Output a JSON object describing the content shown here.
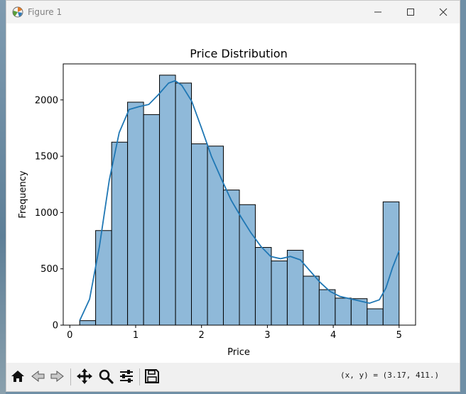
{
  "window": {
    "title": "Figure 1",
    "controls": [
      "minimize-icon",
      "maximize-icon",
      "close-icon"
    ]
  },
  "toolbar": {
    "buttons": [
      "home-icon",
      "back-icon",
      "forward-icon",
      "pan-icon",
      "zoom-icon",
      "configure-subplots-icon",
      "save-icon"
    ],
    "coords_text": "(x, y) = (3.17, 411.)"
  },
  "colors": {
    "bar_fill": "#8fb9d9",
    "bar_edge": "#000000",
    "kde_line": "#1f77b4"
  },
  "chart_data": {
    "type": "bar",
    "title": "Price Distribution",
    "xlabel": "Price",
    "ylabel": "Frequency",
    "xlim": [
      -0.1,
      5.25
    ],
    "ylim": [
      0,
      2320
    ],
    "xticks": [
      0,
      1,
      2,
      3,
      4,
      5
    ],
    "yticks": [
      0,
      500,
      1000,
      1500,
      2000
    ],
    "bin_edges": [
      0.15,
      0.392,
      0.635,
      0.877,
      1.12,
      1.362,
      1.605,
      1.847,
      2.09,
      2.332,
      2.575,
      2.817,
      3.06,
      3.302,
      3.545,
      3.787,
      4.03,
      4.272,
      4.515,
      4.757,
      5.0
    ],
    "counts": [
      40,
      840,
      1625,
      1980,
      1870,
      2220,
      2150,
      1610,
      1590,
      1200,
      1070,
      690,
      570,
      665,
      435,
      315,
      240,
      235,
      145,
      1095
    ],
    "kde": {
      "x": [
        0.15,
        0.3,
        0.45,
        0.6,
        0.75,
        0.9,
        1.05,
        1.2,
        1.35,
        1.5,
        1.6,
        1.7,
        1.85,
        2.0,
        2.15,
        2.3,
        2.45,
        2.6,
        2.75,
        2.9,
        3.05,
        3.2,
        3.35,
        3.5,
        3.65,
        3.8,
        3.95,
        4.1,
        4.25,
        4.4,
        4.55,
        4.7,
        4.8,
        4.9,
        5.0
      ],
      "y": [
        40,
        230,
        700,
        1290,
        1710,
        1915,
        1940,
        1960,
        2050,
        2150,
        2170,
        2130,
        1990,
        1750,
        1500,
        1300,
        1110,
        960,
        820,
        700,
        610,
        590,
        610,
        580,
        480,
        380,
        300,
        255,
        235,
        215,
        195,
        225,
        330,
        510,
        660
      ]
    },
    "grid": false,
    "legend": "none"
  }
}
